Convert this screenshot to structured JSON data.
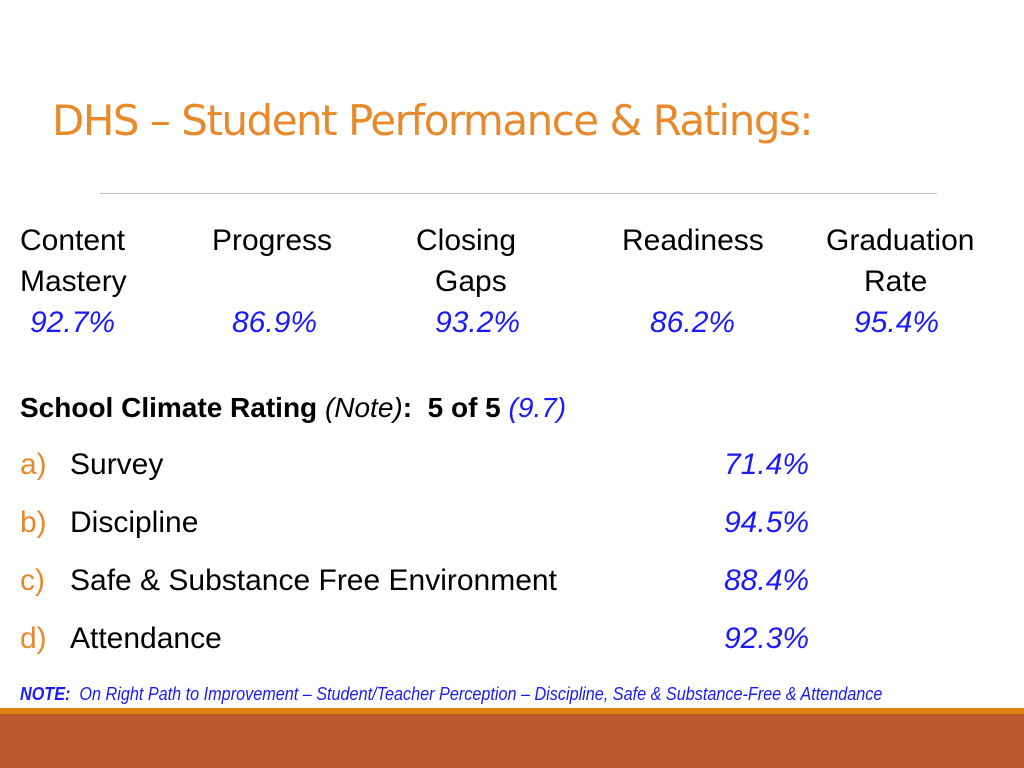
{
  "title": "DHS – Student Performance & Ratings:",
  "metrics": [
    {
      "line1": "Content",
      "line2": "Mastery",
      "value": "92.7%"
    },
    {
      "line1": "Progress",
      "line2": "",
      "value": "86.9%"
    },
    {
      "line1": "Closing",
      "line2": "Gaps",
      "value": "93.2%"
    },
    {
      "line1": "Readiness",
      "line2": "",
      "value": "86.2%"
    },
    {
      "line1": "Graduation",
      "line2": "Rate",
      "value": "95.4%"
    }
  ],
  "climate": {
    "label": "School Climate Rating",
    "note": "(Note)",
    "colon": ":",
    "rating": "5 of 5",
    "score": "(9.7)"
  },
  "items": [
    {
      "letter": "a)",
      "label": "Survey",
      "value": "71.4%"
    },
    {
      "letter": "b)",
      "label": "Discipline",
      "value": "94.5%"
    },
    {
      "letter": "c)",
      "label": "Safe & Substance Free Environment",
      "value": "88.4%"
    },
    {
      "letter": "d)",
      "label": "Attendance",
      "value": "92.3%"
    }
  ],
  "note": {
    "label": "NOTE:",
    "text": "On Right Path to Improvement – Student/Teacher Perception – Discipline, Safe & Substance-Free & Attendance"
  }
}
